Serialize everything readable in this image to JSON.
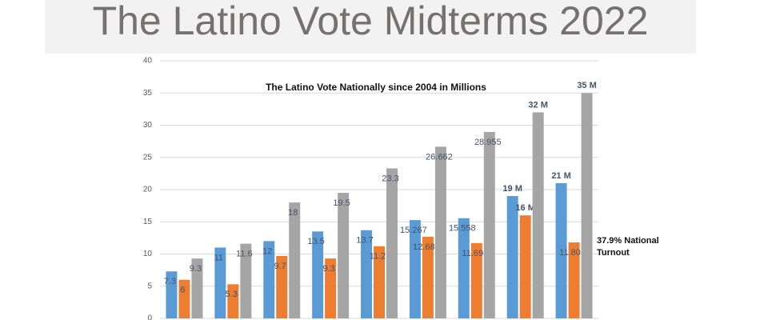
{
  "title": "The Latino Vote Midterms 2022",
  "chart_data": {
    "type": "bar",
    "title": "The Latino Vote Nationally since 2004 in Millions",
    "categories": [
      null,
      null,
      null,
      null,
      null,
      null,
      null,
      null,
      null
    ],
    "series": [
      {
        "color": "#5b9bd5",
        "values": [
          7.3,
          11,
          12,
          13.5,
          13.7,
          15.267,
          15.558,
          19,
          21
        ],
        "value_labels": [
          null,
          null,
          null,
          null,
          null,
          null,
          null,
          "19 M",
          "21 M"
        ]
      },
      {
        "color": "#ed7d31",
        "values": [
          6,
          5.3,
          9.7,
          9.3,
          11.2,
          12.682,
          11.695,
          16,
          11.807
        ],
        "value_labels": [
          null,
          null,
          null,
          null,
          null,
          null,
          null,
          "16 M",
          null
        ]
      },
      {
        "color": "#a5a5a5",
        "values": [
          9.3,
          11.6,
          18,
          19.5,
          23.3,
          26.662,
          28.955,
          32,
          35
        ],
        "value_labels": [
          null,
          null,
          null,
          null,
          null,
          null,
          null,
          "32 M",
          "35 M"
        ]
      }
    ],
    "annotation": "37.9% National Turnout",
    "ylim": [
      0,
      40
    ],
    "yticks": [
      0,
      5,
      10,
      15,
      20,
      25,
      30,
      35,
      40
    ],
    "grid": true
  }
}
